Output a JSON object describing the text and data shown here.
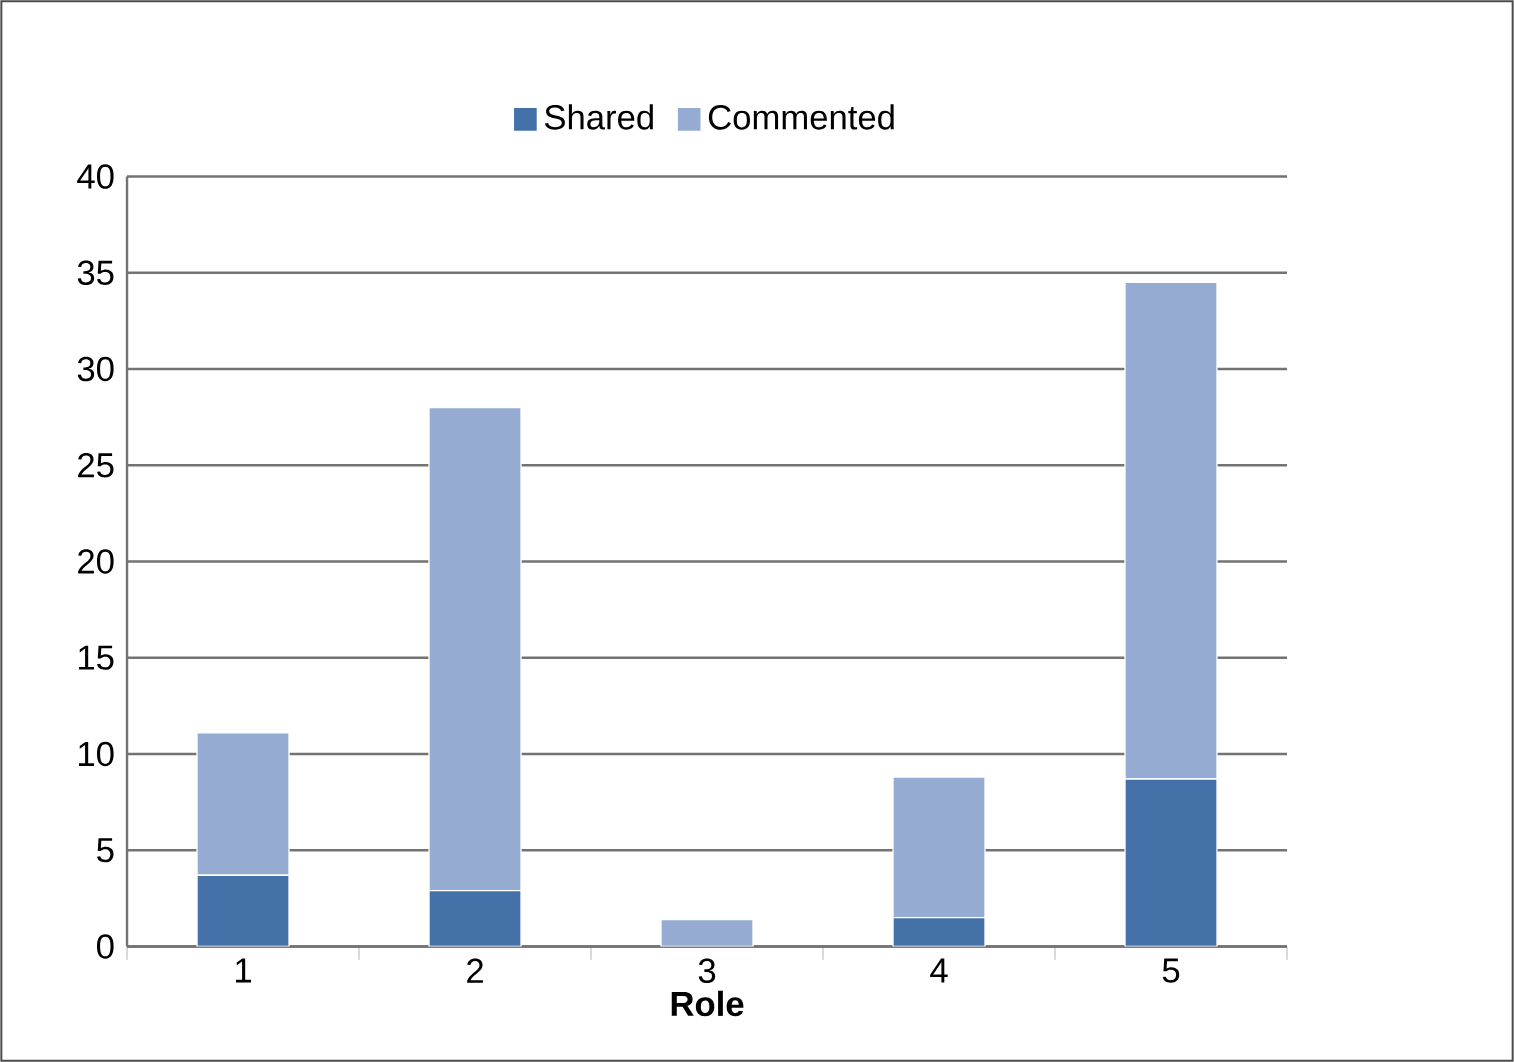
{
  "chart_data": {
    "type": "bar",
    "stacked": true,
    "xlabel": "Role",
    "categories": [
      "1",
      "2",
      "3",
      "4",
      "5"
    ],
    "series": [
      {
        "name": "Shared",
        "color": "#4472a8",
        "values": [
          3.7,
          2.9,
          0,
          1.5,
          8.7
        ]
      },
      {
        "name": "Commented",
        "color": "#95abd1",
        "values": [
          7.4,
          25.1,
          1.4,
          7.3,
          25.8
        ]
      }
    ],
    "ylim": [
      0,
      40
    ],
    "yticks": [
      0,
      5,
      10,
      15,
      20,
      25,
      30,
      35,
      40
    ],
    "grid": "y",
    "legend": "top"
  }
}
